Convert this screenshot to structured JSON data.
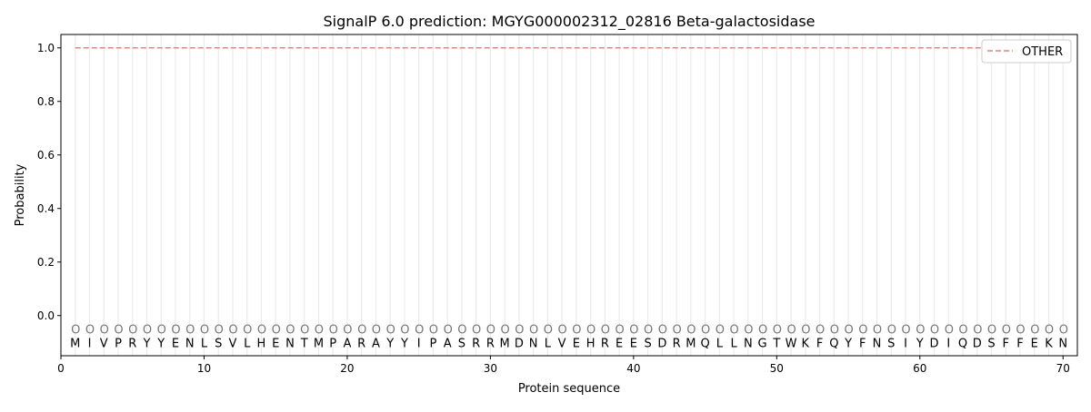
{
  "chart_data": {
    "type": "line",
    "title": "SignalP 6.0 prediction: MGYG000002312_02816 Beta-galactosidase",
    "xlabel": "Protein sequence",
    "ylabel": "Probability",
    "xlim": [
      0,
      71
    ],
    "ylim": [
      -0.15,
      1.05
    ],
    "xticks": [
      0,
      10,
      20,
      30,
      40,
      50,
      60,
      70
    ],
    "yticks": [
      0.0,
      0.2,
      0.4,
      0.6,
      0.8,
      1.0
    ],
    "ytick_labels": [
      "0.0",
      "0.2",
      "0.4",
      "0.6",
      "0.8",
      "1.0"
    ],
    "legend_position": "top-right",
    "sequence": [
      "M",
      "I",
      "V",
      "P",
      "R",
      "Y",
      "Y",
      "E",
      "N",
      "L",
      "S",
      "V",
      "L",
      "H",
      "E",
      "N",
      "T",
      "M",
      "P",
      "A",
      "R",
      "A",
      "Y",
      "Y",
      "I",
      "P",
      "A",
      "S",
      "R",
      "R",
      "M",
      "D",
      "N",
      "L",
      "V",
      "E",
      "H",
      "R",
      "E",
      "E",
      "S",
      "D",
      "R",
      "M",
      "Q",
      "L",
      "L",
      "N",
      "G",
      "T",
      "W",
      "K",
      "F",
      "Q",
      "Y",
      "F",
      "N",
      "S",
      "I",
      "Y",
      "D",
      "I",
      "Q",
      "D",
      "S",
      "F",
      "F",
      "E",
      "K",
      "N"
    ],
    "predicted_labels": "OOOOOOOOOOOOOOOOOOOOOOOOOOOOOOOOOOOOOOOOOOOOOOOOOOOOOOOOOOOOOOOOOOOOOO",
    "series": [
      {
        "name": "OTHER",
        "color": "#f08080",
        "style": "dashed",
        "x_start": 1,
        "x_end": 70,
        "value": 1.0
      }
    ]
  }
}
